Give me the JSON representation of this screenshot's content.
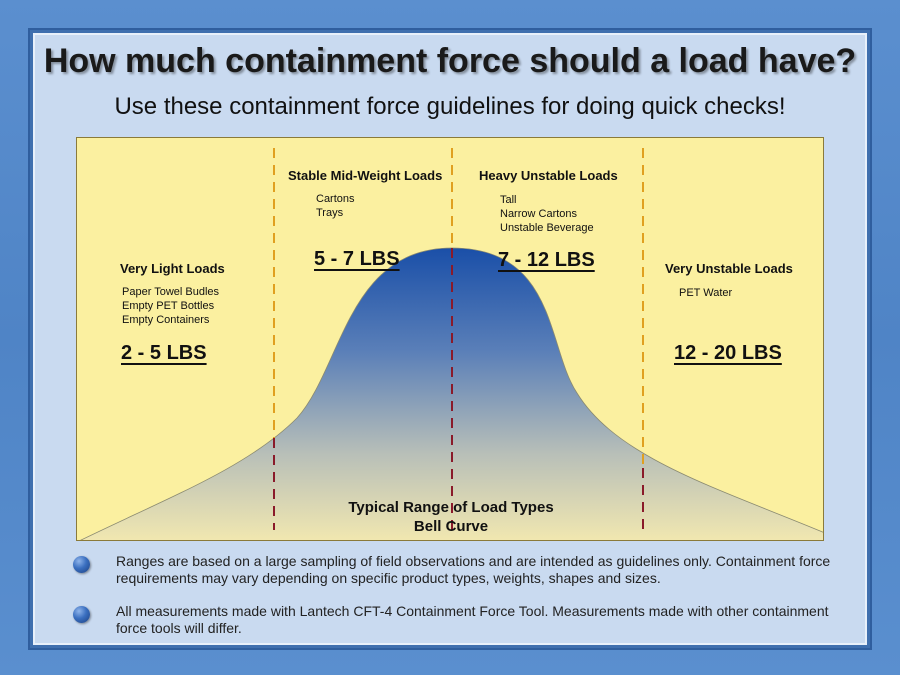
{
  "title": "How much containment force should a load have?",
  "subtitle": "Use these containment force guidelines for doing quick checks!",
  "zones": [
    {
      "category": "Very Light Loads",
      "items": [
        "Paper Towel Budles",
        "Empty PET Bottles",
        "Empty Containers"
      ],
      "range": "2 - 5 LBS"
    },
    {
      "category": "Stable Mid-Weight Loads",
      "items": [
        "Cartons",
        "Trays"
      ],
      "range": "5 - 7 LBS"
    },
    {
      "category": "Heavy Unstable Loads",
      "items": [
        "Tall",
        "Narrow Cartons",
        "Unstable Beverage"
      ],
      "range": "7 - 12 LBS"
    },
    {
      "category": "Very Unstable Loads",
      "items": [
        "PET Water"
      ],
      "range": "12 - 20 LBS"
    }
  ],
  "curve_label": {
    "line1": "Typical Range of Load Types",
    "line2": "Bell Curve"
  },
  "notes": [
    "Ranges are based on a large sampling of field observations and are intended as guidelines only. Containment force requirements may vary depending on specific product types, weights, shapes and sizes.",
    "All measurements made with Lantech CFT-4 Containment Force Tool. Measurements made with other containment force tools will differ."
  ],
  "colors": {
    "background": "#fbf0a0",
    "curve_top": "#1a4fa8",
    "curve_bottom": "#f2e8b0",
    "divider_upper": "#e0a020",
    "divider_lower": "#8a1a2a"
  }
}
